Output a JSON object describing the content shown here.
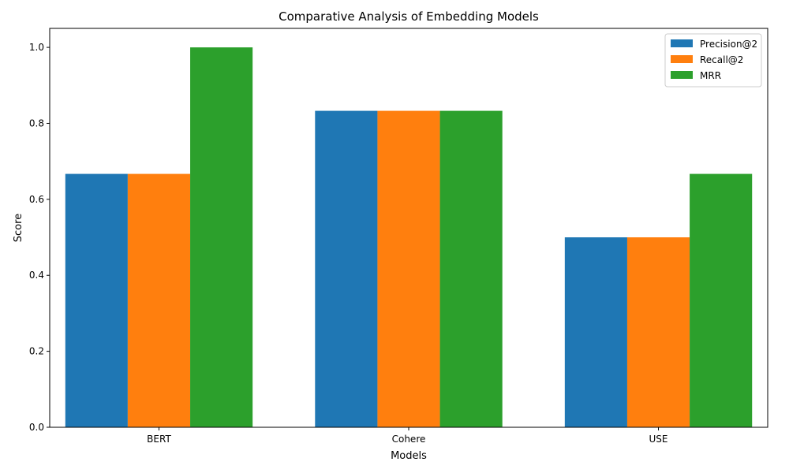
{
  "chart_data": {
    "type": "bar",
    "title": "Comparative Analysis of Embedding Models",
    "xlabel": "Models",
    "ylabel": "Score",
    "categories": [
      "BERT",
      "Cohere",
      "USE"
    ],
    "series": [
      {
        "name": "Precision@2",
        "values": [
          0.667,
          0.833,
          0.5
        ],
        "color": "#1f77b4"
      },
      {
        "name": "Recall@2",
        "values": [
          0.667,
          0.833,
          0.5
        ],
        "color": "#ff7f0e"
      },
      {
        "name": "MRR",
        "values": [
          1.0,
          0.833,
          0.667
        ],
        "color": "#2ca02c"
      }
    ],
    "ylim": [
      0,
      1.05
    ],
    "yticks": [
      "0.0",
      "0.2",
      "0.4",
      "0.6",
      "0.8",
      "1.0"
    ],
    "grid": false,
    "legend_position": "top-right"
  }
}
